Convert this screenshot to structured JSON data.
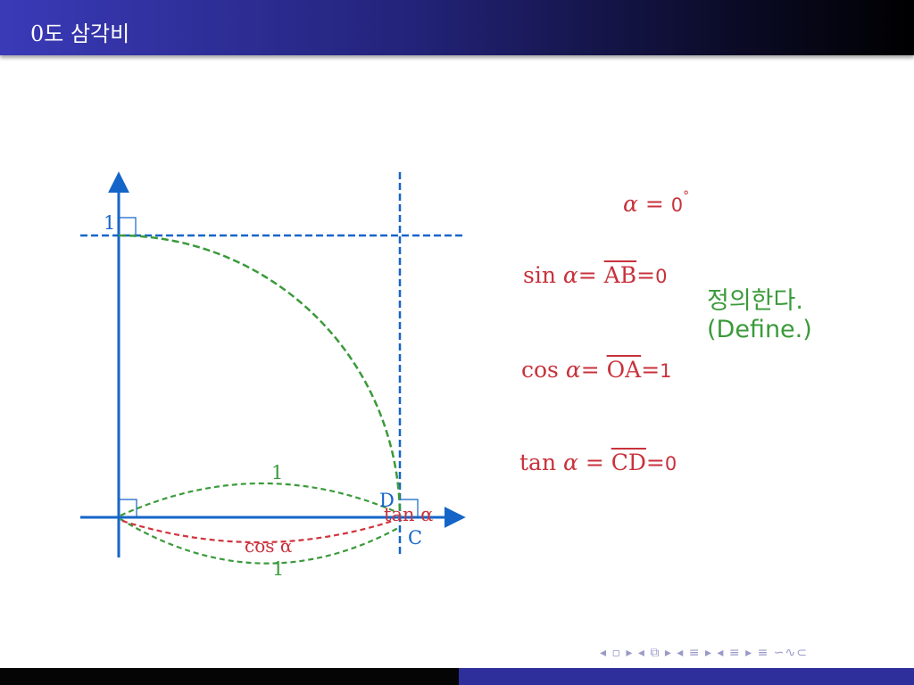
{
  "slide": {
    "title": "0도 삼각비"
  },
  "diagram": {
    "labels": {
      "one_y_axis": "1",
      "one_upper_arc": "1",
      "one_lower_arc": "1",
      "point_D": "D",
      "point_C": "C",
      "tan_alpha": "tan α",
      "cos_alpha": "cos α"
    },
    "colors": {
      "axis": "#1565c8",
      "arc": "#3a9a3a",
      "segment": "#d0353e",
      "text_red": "#c8323c"
    }
  },
  "formulas": {
    "alpha_lhs": "α",
    "alpha_eq": " = ",
    "alpha_value": "0",
    "degree": "°",
    "sin_func": "sin ",
    "sin_var": "α",
    "sin_eq": "= ",
    "sin_seg": "AB",
    "sin_eq2": "=",
    "sin_value": "0",
    "cos_func": "cos ",
    "cos_var": "α",
    "cos_eq": "= ",
    "cos_seg": "OA",
    "cos_eq2": "=",
    "cos_value": "1",
    "tan_func": "tan ",
    "tan_var": "α",
    "tan_eq": " = ",
    "tan_seg": "CD",
    "tan_eq2": "=",
    "tan_value": "0"
  },
  "note": {
    "korean": "정의한다.",
    "english": "(Define.)"
  },
  "nav": {
    "symbols": "◂ ▫ ▸ ◂ ⧉ ▸ ◂ ≡ ▸ ◂ ≡ ▸   ≡   ∽∿⊂"
  }
}
